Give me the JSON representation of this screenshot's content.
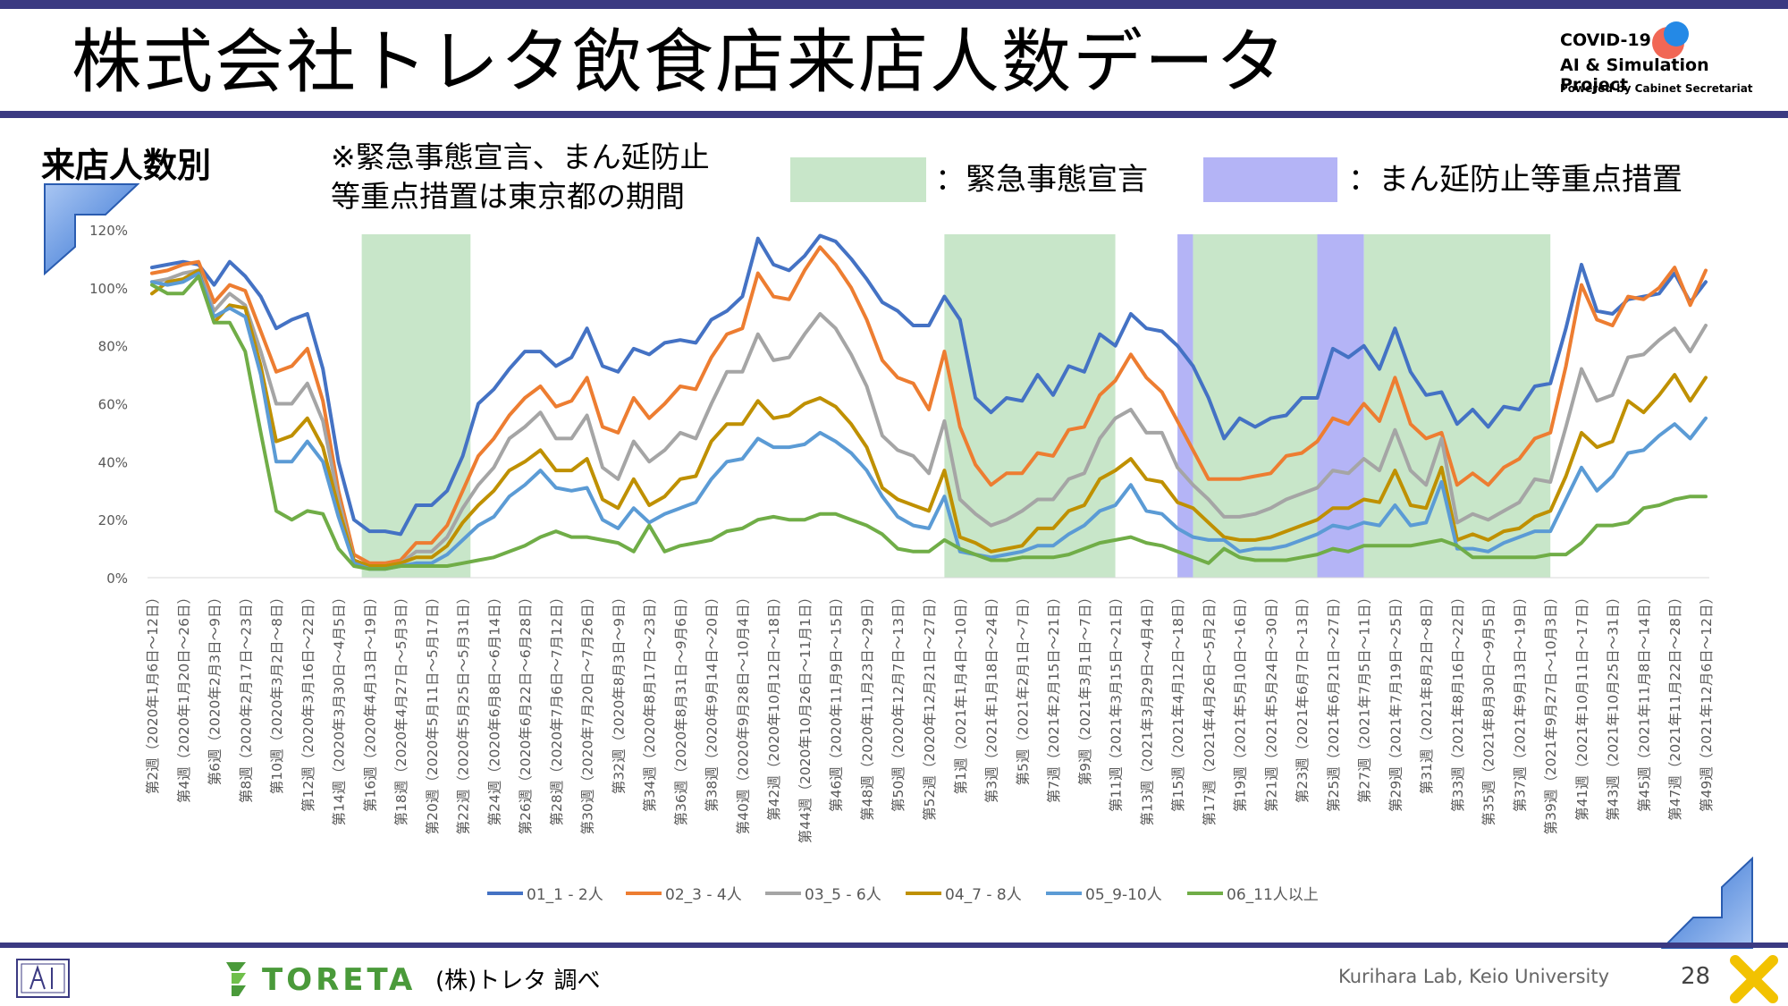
{
  "header": {
    "title": "株式会社トレタ飲食店来店人数データ",
    "covid_logo": {
      "line1": "COVID-19",
      "line2": "AI & Simulation Project",
      "line3": "Powered by Cabinet Secretariat"
    }
  },
  "section": {
    "title": "来店人数別",
    "note_line1": "※緊急事態宣言、まん延防止",
    "note_line2": "等重点措置は東京都の期間",
    "legend_emergency": "：緊急事態宣言",
    "legend_manen": "：まん延防止等重点措置"
  },
  "colors": {
    "emergency_band": "#c8e6c9",
    "manen_band": "#b4b4f6",
    "frame": "#3b3a82"
  },
  "chart_data": {
    "type": "line",
    "title": "",
    "xlabel": "",
    "ylabel": "",
    "ylim": [
      0,
      1.2
    ],
    "yticks": [
      "0%",
      "20%",
      "40%",
      "60%",
      "80%",
      "100%",
      "120%"
    ],
    "grid": false,
    "legend_position": "bottom",
    "x_labels": [
      "第2週（2020年1月6日～12日）",
      "第4週（2020年1月20日～26日）",
      "第6週（2020年2月3日～9日）",
      "第8週（2020年2月17日～23日）",
      "第10週（2020年3月2日～8日）",
      "第12週（2020年3月16日～22日）",
      "第14週（2020年3月30日～4月5日）",
      "第16週（2020年4月13日～19日）",
      "第18週（2020年4月27日～5月3日）",
      "第20週（2020年5月11日～5月17日）",
      "第22週（2020年5月25日～5月31日）",
      "第24週（2020年6月8日～6月14日）",
      "第26週（2020年6月22日～6月28日）",
      "第28週（2020年7月6日～7月12日）",
      "第30週（2020年7月20日～7月26日）",
      "第32週（2020年8月3日～9日）",
      "第34週（2020年8月17日～23日）",
      "第36週（2020年8月31日～9月6日）",
      "第38週（2020年9月14日～20日）",
      "第40週（2020年9月28日～10月4日）",
      "第42週（2020年10月12日～18日）",
      "第44週（2020年10月26日～11月1日）",
      "第46週（2020年11月9日～15日）",
      "第48週（2020年11月23日～29日）",
      "第50週（2020年12月7日～13日）",
      "第52週（2020年12月21日～27日）",
      "第1週（2021年1月4日～10日）",
      "第3週（2021年1月18日～24日）",
      "第5週（2021年2月1日～7日）",
      "第7週（2021年2月15日～21日）",
      "第9週（2021年3月1日～7日）",
      "第11週（2021年3月15日～21日）",
      "第13週（2021年3月29日～4月4日）",
      "第15週（2021年4月12日～18日）",
      "第17週（2021年4月26日～5月2日）",
      "第19週（2021年5月10日～16日）",
      "第21週（2021年5月24日～30日）",
      "第23週（2021年6月7日～13日）",
      "第25週（2021年6月21日～27日）",
      "第27週（2021年7月5日～11日）",
      "第29週（2021年7月19日～25日）",
      "第31週（2021年8月2日～8日）",
      "第33週（2021年8月16日～22日）",
      "第35週（2021年8月30日～9月5日）",
      "第37週（2021年9月13日～19日）",
      "第39週（2021年9月27日～10月3日）",
      "第41週（2021年10月11日～17日）",
      "第43週（2021年10月25日～31日）",
      "第45週（2021年11月8日～14日）",
      "第47週（2021年11月22日～28日）",
      "第49週（2021年12月6日～12日）"
    ],
    "bands": [
      {
        "type": "emergency",
        "from": 13.5,
        "to": 20.5
      },
      {
        "type": "emergency",
        "from": 51.0,
        "to": 62.0
      },
      {
        "type": "manen",
        "from": 66.0,
        "to": 67.0
      },
      {
        "type": "emergency",
        "from": 67.0,
        "to": 75.0
      },
      {
        "type": "manen",
        "from": 75.0,
        "to": 78.0
      },
      {
        "type": "emergency",
        "from": 78.0,
        "to": 90.0
      }
    ],
    "series": [
      {
        "name": "01_1 - 2人",
        "color": "#4472c4",
        "values": [
          1.07,
          1.08,
          1.09,
          1.08,
          1.01,
          1.09,
          1.04,
          0.97,
          0.86,
          0.89,
          0.91,
          0.72,
          0.4,
          0.2,
          0.16,
          0.16,
          0.15,
          0.25,
          0.25,
          0.3,
          0.42,
          0.6,
          0.65,
          0.72,
          0.78,
          0.78,
          0.73,
          0.76,
          0.86,
          0.73,
          0.71,
          0.79,
          0.77,
          0.81,
          0.82,
          0.81,
          0.89,
          0.92,
          0.97,
          1.17,
          1.08,
          1.06,
          1.11,
          1.18,
          1.16,
          1.1,
          1.03,
          0.95,
          0.92,
          0.87,
          0.87,
          0.97,
          0.89,
          0.62,
          0.57,
          0.62,
          0.61,
          0.7,
          0.63,
          0.73,
          0.71,
          0.84,
          0.8,
          0.91,
          0.86,
          0.85,
          0.8,
          0.73,
          0.62,
          0.48,
          0.55,
          0.52,
          0.55,
          0.56,
          0.62,
          0.62,
          0.79,
          0.76,
          0.8,
          0.72,
          0.86,
          0.71,
          0.63,
          0.64,
          0.53,
          0.58,
          0.52,
          0.59,
          0.58,
          0.66,
          0.67,
          0.86,
          1.08,
          0.92,
          0.91,
          0.96,
          0.97,
          0.98,
          1.05,
          0.95,
          1.02
        ]
      },
      {
        "name": "02_3 - 4人",
        "color": "#ed7d31",
        "values": [
          1.05,
          1.06,
          1.08,
          1.09,
          0.95,
          1.01,
          0.99,
          0.85,
          0.71,
          0.73,
          0.79,
          0.61,
          0.3,
          0.08,
          0.05,
          0.05,
          0.06,
          0.12,
          0.12,
          0.18,
          0.3,
          0.42,
          0.48,
          0.56,
          0.62,
          0.66,
          0.59,
          0.61,
          0.69,
          0.52,
          0.5,
          0.62,
          0.55,
          0.6,
          0.66,
          0.65,
          0.76,
          0.84,
          0.86,
          1.05,
          0.97,
          0.96,
          1.06,
          1.14,
          1.08,
          1.0,
          0.89,
          0.75,
          0.69,
          0.67,
          0.58,
          0.78,
          0.52,
          0.39,
          0.32,
          0.36,
          0.36,
          0.43,
          0.42,
          0.51,
          0.52,
          0.63,
          0.68,
          0.77,
          0.69,
          0.64,
          0.54,
          0.44,
          0.34,
          0.34,
          0.34,
          0.35,
          0.36,
          0.42,
          0.43,
          0.47,
          0.55,
          0.53,
          0.6,
          0.54,
          0.69,
          0.53,
          0.48,
          0.5,
          0.32,
          0.36,
          0.32,
          0.38,
          0.41,
          0.48,
          0.5,
          0.73,
          1.01,
          0.89,
          0.87,
          0.97,
          0.96,
          1.0,
          1.07,
          0.94,
          1.06
        ]
      },
      {
        "name": "03_5 - 6人",
        "color": "#a5a5a5",
        "values": [
          1.02,
          1.03,
          1.05,
          1.06,
          0.92,
          0.98,
          0.94,
          0.78,
          0.6,
          0.6,
          0.67,
          0.54,
          0.27,
          0.06,
          0.04,
          0.04,
          0.05,
          0.09,
          0.09,
          0.14,
          0.24,
          0.32,
          0.38,
          0.48,
          0.52,
          0.57,
          0.48,
          0.48,
          0.56,
          0.38,
          0.34,
          0.47,
          0.4,
          0.44,
          0.5,
          0.48,
          0.6,
          0.71,
          0.71,
          0.84,
          0.75,
          0.76,
          0.84,
          0.91,
          0.86,
          0.77,
          0.66,
          0.49,
          0.44,
          0.42,
          0.36,
          0.54,
          0.27,
          0.22,
          0.18,
          0.2,
          0.23,
          0.27,
          0.27,
          0.34,
          0.36,
          0.48,
          0.55,
          0.58,
          0.5,
          0.5,
          0.38,
          0.32,
          0.27,
          0.21,
          0.21,
          0.22,
          0.24,
          0.27,
          0.29,
          0.31,
          0.37,
          0.36,
          0.41,
          0.37,
          0.51,
          0.37,
          0.32,
          0.48,
          0.19,
          0.22,
          0.2,
          0.23,
          0.26,
          0.34,
          0.33,
          0.52,
          0.72,
          0.61,
          0.63,
          0.76,
          0.77,
          0.82,
          0.86,
          0.78,
          0.87
        ]
      },
      {
        "name": "04_7 - 8人",
        "color": "#bf9000",
        "values": [
          0.98,
          1.02,
          1.03,
          1.06,
          0.88,
          0.94,
          0.93,
          0.73,
          0.47,
          0.49,
          0.55,
          0.45,
          0.24,
          0.06,
          0.04,
          0.04,
          0.05,
          0.07,
          0.07,
          0.11,
          0.19,
          0.25,
          0.3,
          0.37,
          0.4,
          0.44,
          0.37,
          0.37,
          0.41,
          0.27,
          0.24,
          0.34,
          0.25,
          0.28,
          0.34,
          0.35,
          0.47,
          0.53,
          0.53,
          0.61,
          0.55,
          0.56,
          0.6,
          0.62,
          0.59,
          0.53,
          0.45,
          0.31,
          0.27,
          0.25,
          0.23,
          0.37,
          0.14,
          0.12,
          0.09,
          0.1,
          0.11,
          0.17,
          0.17,
          0.23,
          0.25,
          0.34,
          0.37,
          0.41,
          0.34,
          0.33,
          0.26,
          0.24,
          0.19,
          0.14,
          0.13,
          0.13,
          0.14,
          0.16,
          0.18,
          0.2,
          0.24,
          0.24,
          0.27,
          0.26,
          0.37,
          0.25,
          0.24,
          0.38,
          0.13,
          0.15,
          0.13,
          0.16,
          0.17,
          0.21,
          0.23,
          0.35,
          0.5,
          0.45,
          0.47,
          0.61,
          0.57,
          0.63,
          0.7,
          0.61,
          0.69
        ]
      },
      {
        "name": "05_9-10人",
        "color": "#5b9bd5",
        "values": [
          1.02,
          1.01,
          1.02,
          1.05,
          0.9,
          0.93,
          0.9,
          0.7,
          0.4,
          0.4,
          0.47,
          0.4,
          0.21,
          0.05,
          0.03,
          0.03,
          0.04,
          0.05,
          0.05,
          0.08,
          0.13,
          0.18,
          0.21,
          0.28,
          0.32,
          0.37,
          0.31,
          0.3,
          0.31,
          0.2,
          0.17,
          0.24,
          0.19,
          0.22,
          0.24,
          0.26,
          0.34,
          0.4,
          0.41,
          0.48,
          0.45,
          0.45,
          0.46,
          0.5,
          0.47,
          0.43,
          0.37,
          0.28,
          0.21,
          0.18,
          0.17,
          0.28,
          0.09,
          0.08,
          0.07,
          0.08,
          0.09,
          0.11,
          0.11,
          0.15,
          0.18,
          0.23,
          0.25,
          0.32,
          0.23,
          0.22,
          0.17,
          0.14,
          0.13,
          0.13,
          0.09,
          0.1,
          0.1,
          0.11,
          0.13,
          0.15,
          0.18,
          0.17,
          0.19,
          0.18,
          0.25,
          0.18,
          0.19,
          0.33,
          0.1,
          0.1,
          0.09,
          0.12,
          0.14,
          0.16,
          0.16,
          0.27,
          0.38,
          0.3,
          0.35,
          0.43,
          0.44,
          0.49,
          0.53,
          0.48,
          0.55
        ]
      },
      {
        "name": "06_11人以上",
        "color": "#70ad47",
        "values": [
          1.01,
          0.98,
          0.98,
          1.04,
          0.88,
          0.88,
          0.78,
          0.5,
          0.23,
          0.2,
          0.23,
          0.22,
          0.1,
          0.04,
          0.03,
          0.03,
          0.04,
          0.04,
          0.04,
          0.04,
          0.05,
          0.06,
          0.07,
          0.09,
          0.11,
          0.14,
          0.16,
          0.14,
          0.14,
          0.13,
          0.12,
          0.09,
          0.18,
          0.09,
          0.11,
          0.12,
          0.13,
          0.16,
          0.17,
          0.2,
          0.21,
          0.2,
          0.2,
          0.22,
          0.22,
          0.2,
          0.18,
          0.15,
          0.1,
          0.09,
          0.09,
          0.13,
          0.1,
          0.08,
          0.06,
          0.06,
          0.07,
          0.07,
          0.07,
          0.08,
          0.1,
          0.12,
          0.13,
          0.14,
          0.12,
          0.11,
          0.09,
          0.07,
          0.05,
          0.1,
          0.07,
          0.06,
          0.06,
          0.06,
          0.07,
          0.08,
          0.1,
          0.09,
          0.11,
          0.11,
          0.11,
          0.11,
          0.12,
          0.13,
          0.11,
          0.07,
          0.07,
          0.07,
          0.07,
          0.07,
          0.08,
          0.08,
          0.12,
          0.18,
          0.18,
          0.19,
          0.24,
          0.25,
          0.27,
          0.28,
          0.28
        ]
      }
    ]
  },
  "footer": {
    "logo_name": "TORETA",
    "source": "(株)トレタ 調べ",
    "lab": "Kurihara Lab, Keio University",
    "page_number": "28"
  }
}
